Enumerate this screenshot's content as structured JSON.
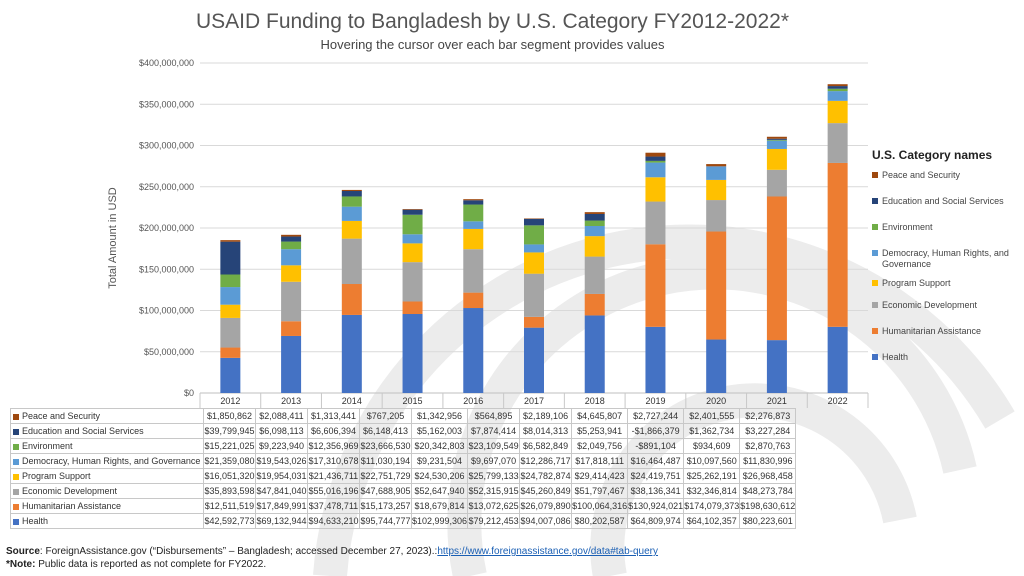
{
  "title": "USAID Funding to Bangladesh by U.S. Category FY2012-2022*",
  "subtitle": "Hovering the cursor over each bar segment provides values",
  "legend_title": "U.S. Category names",
  "source_label": "Source",
  "source_text": ": ForeignAssistance.gov (“Disbursements” – Bangladesh; accessed December 27, 2023).:",
  "source_link": "https://www.foreignassistance.gov/data#tab-query",
  "note_label": "*Note:",
  "note_text": " Public data is reported as not complete for FY2022.",
  "chart_data": {
    "type": "bar",
    "stacked": true,
    "ylabel": "Total Amount in USD",
    "ylim": [
      0,
      400000000
    ],
    "yticks": [
      {
        "value": 0,
        "label": "$0"
      },
      {
        "value": 50000000,
        "label": "$50,000,000"
      },
      {
        "value": 100000000,
        "label": "$100,000,000"
      },
      {
        "value": 150000000,
        "label": "$150,000,000"
      },
      {
        "value": 200000000,
        "label": "$200,000,000"
      },
      {
        "value": 250000000,
        "label": "$250,000,000"
      },
      {
        "value": 300000000,
        "label": "$300,000,000"
      },
      {
        "value": 350000000,
        "label": "$350,000,000"
      },
      {
        "value": 400000000,
        "label": "$400,000,000"
      }
    ],
    "grid": true,
    "legend_position": "right",
    "categories": [
      "2012",
      "2013",
      "2014",
      "2015",
      "2016",
      "2017",
      "2018",
      "2019",
      "2020",
      "2021",
      "2022"
    ],
    "series": [
      {
        "name": "Health",
        "color": "#4472c4",
        "values": [
          42592773,
          69132944,
          94633210,
          95744777,
          102999306,
          79212453,
          94007086,
          80202587,
          64809974,
          64102357,
          80223601
        ],
        "labels": [
          "$42,592,773",
          "$69,132,944",
          "$94,633,210",
          "$95,744,777",
          "$102,999,306",
          "$79,212,453",
          "$94,007,086",
          "$80,202,587",
          "$64,809,974",
          "$64,102,357",
          "$80,223,601"
        ]
      },
      {
        "name": "Humanitarian Assistance",
        "color": "#ed7d31",
        "values": [
          12511519,
          17849991,
          37478711,
          15173257,
          18679814,
          13072625,
          26079890,
          100064316,
          130924021,
          174079373,
          198630612
        ],
        "labels": [
          "$12,511,519",
          "$17,849,991",
          "$37,478,711",
          "$15,173,257",
          "$18,679,814",
          "$13,072,625",
          "$26,079,890",
          "$100,064,316",
          "$130,924,021",
          "$174,079,373",
          "$198,630,612"
        ]
      },
      {
        "name": "Economic Development",
        "color": "#a5a5a5",
        "values": [
          35893598,
          47841040,
          55016196,
          47688905,
          52647940,
          52315915,
          45260849,
          51797467,
          38136341,
          32346814,
          48273784
        ],
        "labels": [
          "$35,893,598",
          "$47,841,040",
          "$55,016,196",
          "$47,688,905",
          "$52,647,940",
          "$52,315,915",
          "$45,260,849",
          "$51,797,467",
          "$38,136,341",
          "$32,346,814",
          "$48,273,784"
        ]
      },
      {
        "name": "Program Support",
        "color": "#ffc000",
        "values": [
          16051320,
          19954031,
          21436711,
          22751729,
          24530206,
          25799133,
          24782874,
          29414423,
          24419751,
          25262191,
          26968458
        ],
        "labels": [
          "$16,051,320",
          "$19,954,031",
          "$21,436,711",
          "$22,751,729",
          "$24,530,206",
          "$25,799,133",
          "$24,782,874",
          "$29,414,423",
          "$24,419,751",
          "$25,262,191",
          "$26,968,458"
        ]
      },
      {
        "name": "Democracy, Human Rights, and Governance",
        "color": "#5b9bd5",
        "values": [
          21359080,
          19543026,
          17310678,
          11030194,
          9231504,
          9697070,
          12286717,
          17818111,
          16464487,
          10097560,
          11830996
        ],
        "labels": [
          "$21,359,080",
          "$19,543,026",
          "$17,310,678",
          "$11,030,194",
          "$9,231,504",
          "$9,697,070",
          "$12,286,717",
          "$17,818,111",
          "$16,464,487",
          "$10,097,560",
          "$11,830,996"
        ]
      },
      {
        "name": "Environment",
        "color": "#70ad47",
        "values": [
          15221025,
          9223940,
          12356969,
          23666530,
          20342803,
          23109549,
          6582849,
          2049756,
          -891104,
          934609,
          2870763
        ],
        "labels": [
          "$15,221,025",
          "$9,223,940",
          "$12,356,969",
          "$23,666,530",
          "$20,342,803",
          "$23,109,549",
          "$6,582,849",
          "$2,049,756",
          "-$891,104",
          "$934,609",
          "$2,870,763"
        ]
      },
      {
        "name": "Education and Social Services",
        "color": "#264478",
        "values": [
          39799945,
          6098113,
          6606394,
          6148413,
          5162003,
          7874414,
          8014313,
          5253941,
          -1866379,
          1362734,
          3227284
        ],
        "labels": [
          "$39,799,945",
          "$6,098,113",
          "$6,606,394",
          "$6,148,413",
          "$5,162,003",
          "$7,874,414",
          "$8,014,313",
          "$5,253,941",
          "-$1,866,379",
          "$1,362,734",
          "$3,227,284"
        ]
      },
      {
        "name": "Peace and Security",
        "color": "#9e480e",
        "values": [
          1850862,
          2088411,
          1313441,
          767205,
          1342956,
          564895,
          2189106,
          4645807,
          2727244,
          2401555,
          2276873
        ],
        "labels": [
          "$1,850,862",
          "$2,088,411",
          "$1,313,441",
          "$767,205",
          "$1,342,956",
          "$564,895",
          "$2,189,106",
          "$4,645,807",
          "$2,727,244",
          "$2,401,555",
          "$2,276,873"
        ]
      }
    ]
  }
}
